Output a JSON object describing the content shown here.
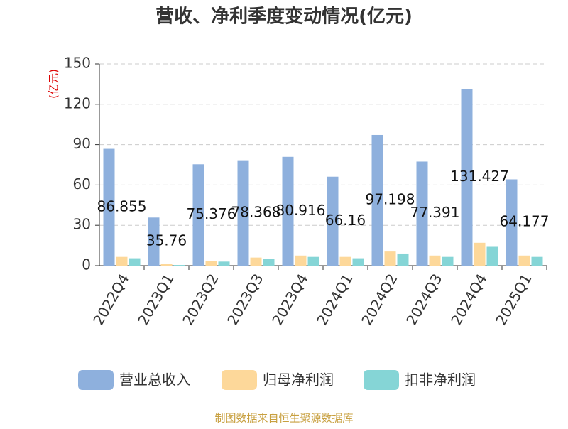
{
  "chart_data": {
    "type": "bar",
    "title": "营收、净利季度变动情况(亿元)",
    "y_label": "(亿元)",
    "source": "制图数据来自恒生聚源数据库",
    "categories": [
      "2022Q4",
      "2023Q1",
      "2023Q2",
      "2023Q3",
      "2023Q4",
      "2024Q1",
      "2024Q2",
      "2024Q3",
      "2024Q4",
      "2025Q1"
    ],
    "series": [
      {
        "name": "营业总收入",
        "color": "#8eb0dd",
        "values": [
          86.855,
          35.76,
          75.376,
          78.368,
          80.916,
          66.16,
          97.198,
          77.391,
          131.427,
          64.177
        ],
        "show_labels": true
      },
      {
        "name": "归母净利润",
        "color": "#fdd89a",
        "values": [
          6.5,
          1.2,
          3.5,
          6,
          7.5,
          6.5,
          10.5,
          7.5,
          17,
          7.5
        ]
      },
      {
        "name": "扣非净利润",
        "color": "#85d5d6",
        "values": [
          5.5,
          0.5,
          3,
          4.8,
          6.5,
          5.5,
          9,
          6.5,
          14,
          6.5
        ]
      }
    ],
    "ylim": [
      0,
      150
    ],
    "yticks": [
      0,
      30,
      60,
      90,
      120,
      150
    ],
    "grid": true
  }
}
